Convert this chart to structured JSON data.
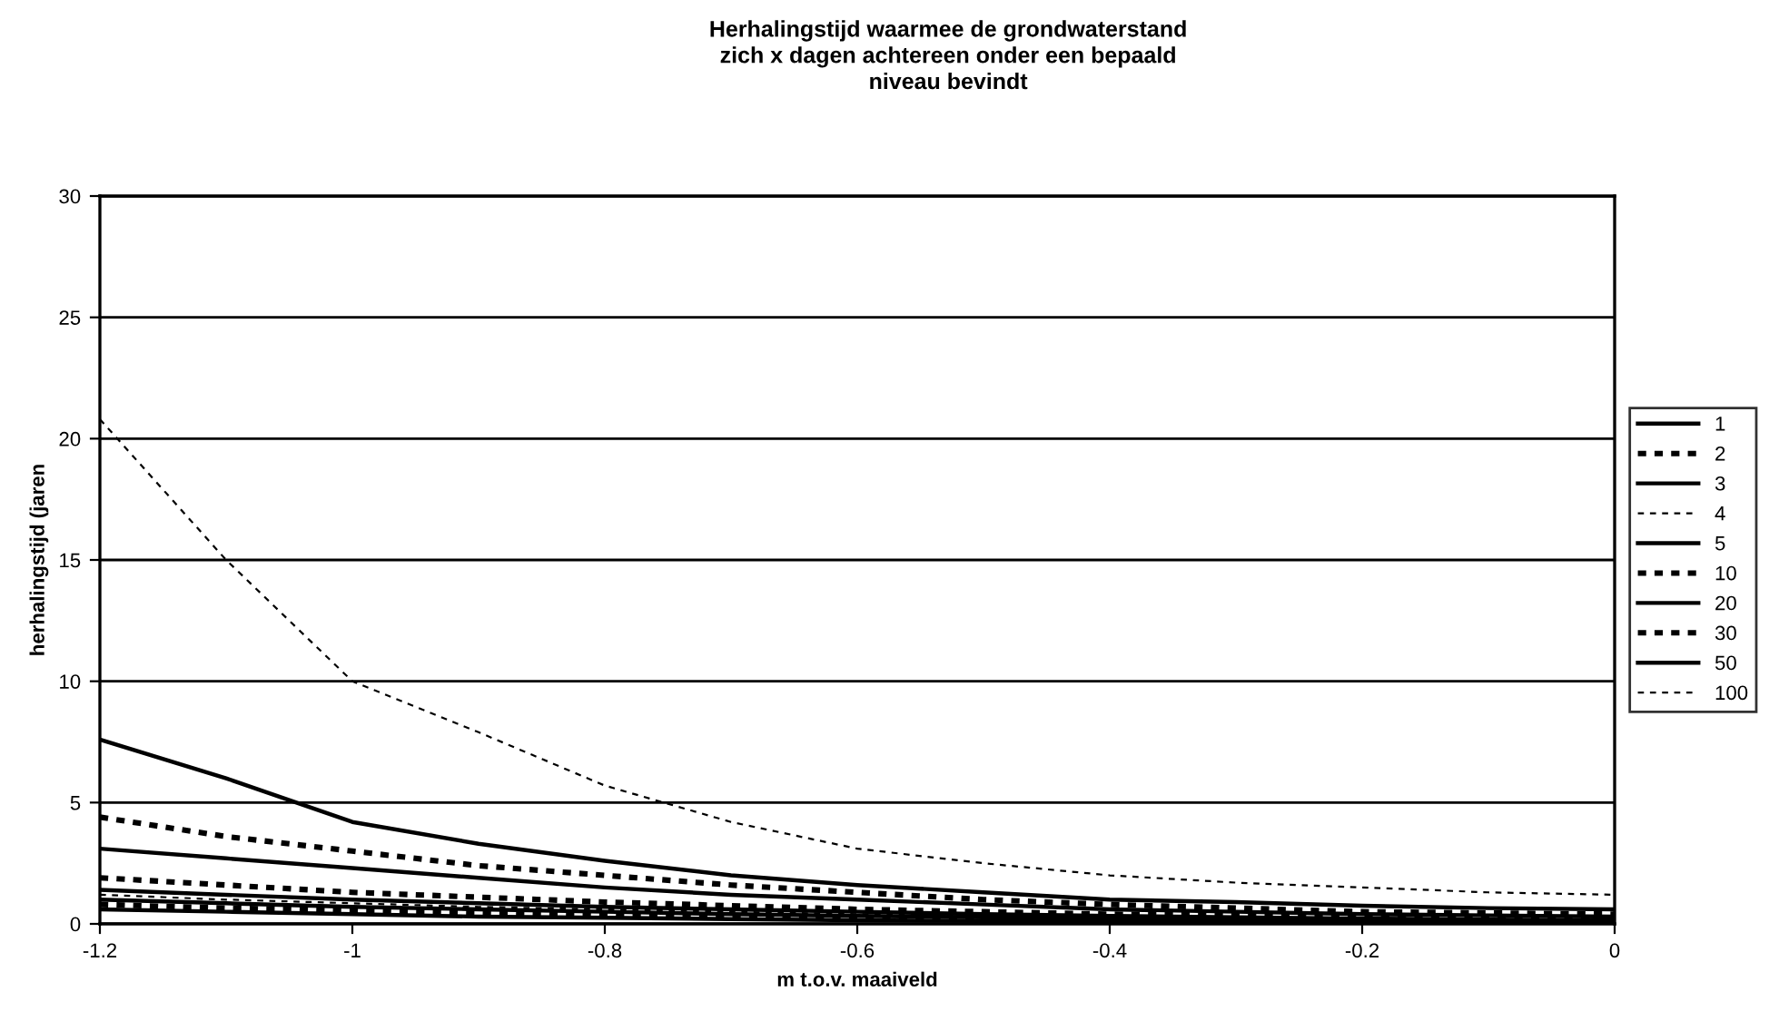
{
  "chart_data": {
    "type": "line",
    "title": "Herhalingstijd waarmee de grondwaterstand\nzich x dagen achtereen onder een bepaald\nniveau bevindt",
    "xlabel": "m t.o.v. maaiveld",
    "ylabel": "herhalingstijd (jaren",
    "xlim": [
      -1.2,
      0
    ],
    "xticks": [
      -1.2,
      -1,
      -0.8,
      -0.6,
      -0.4,
      -0.2,
      0
    ],
    "ylim": [
      0,
      30
    ],
    "yticks": [
      0,
      5,
      10,
      15,
      20,
      25,
      30
    ],
    "grid": "y",
    "legend": "right",
    "marker": "none",
    "x": [
      -1.2,
      -1.1,
      -1.0,
      -0.9,
      -0.8,
      -0.7,
      -0.6,
      -0.5,
      -0.4,
      -0.3,
      -0.2,
      -0.1,
      0
    ],
    "series": [
      {
        "name": "1",
        "color": "#000000",
        "line_style": "solid",
        "values": [
          0.6,
          0.5,
          0.4,
          0.3,
          0.25,
          0.2,
          0.15,
          0.12,
          0.1,
          0.08,
          0.06,
          0.05,
          0.03
        ]
      },
      {
        "name": "2",
        "color": "#000000",
        "line_style": "dotted",
        "values": [
          0.8,
          0.65,
          0.55,
          0.45,
          0.35,
          0.3,
          0.25,
          0.2,
          0.15,
          0.12,
          0.1,
          0.07,
          0.05
        ]
      },
      {
        "name": "3",
        "color": "#000000",
        "line_style": "solid",
        "values": [
          1.0,
          0.85,
          0.7,
          0.6,
          0.5,
          0.4,
          0.33,
          0.27,
          0.22,
          0.18,
          0.14,
          0.1,
          0.08
        ]
      },
      {
        "name": "4",
        "color": "#000000",
        "line_style": "dashed",
        "values": [
          1.2,
          1.0,
          0.85,
          0.7,
          0.6,
          0.5,
          0.4,
          0.33,
          0.27,
          0.22,
          0.17,
          0.13,
          0.1
        ]
      },
      {
        "name": "5",
        "color": "#000000",
        "line_style": "solid",
        "values": [
          1.4,
          1.2,
          1.0,
          0.85,
          0.7,
          0.6,
          0.5,
          0.4,
          0.33,
          0.27,
          0.22,
          0.18,
          0.15
        ]
      },
      {
        "name": "10",
        "color": "#000000",
        "line_style": "dotted",
        "values": [
          1.9,
          1.6,
          1.3,
          1.1,
          0.9,
          0.75,
          0.6,
          0.5,
          0.4,
          0.35,
          0.3,
          0.25,
          0.2
        ]
      },
      {
        "name": "20",
        "color": "#000000",
        "line_style": "solid",
        "values": [
          3.1,
          2.7,
          2.3,
          1.9,
          1.5,
          1.2,
          1.0,
          0.8,
          0.6,
          0.5,
          0.4,
          0.35,
          0.3
        ]
      },
      {
        "name": "30",
        "color": "#000000",
        "line_style": "dotted",
        "values": [
          4.4,
          3.6,
          3.0,
          2.4,
          2.0,
          1.6,
          1.3,
          1.0,
          0.8,
          0.65,
          0.5,
          0.45,
          0.4
        ]
      },
      {
        "name": "50",
        "color": "#000000",
        "line_style": "solid",
        "values": [
          7.6,
          6.0,
          4.2,
          3.3,
          2.6,
          2.0,
          1.6,
          1.3,
          1.0,
          0.9,
          0.75,
          0.65,
          0.6
        ]
      },
      {
        "name": "100",
        "color": "#000000",
        "line_style": "dashed",
        "values": [
          20.8,
          15.0,
          10.0,
          7.9,
          5.7,
          4.2,
          3.1,
          2.5,
          2.0,
          1.7,
          1.5,
          1.3,
          1.2
        ]
      }
    ]
  }
}
